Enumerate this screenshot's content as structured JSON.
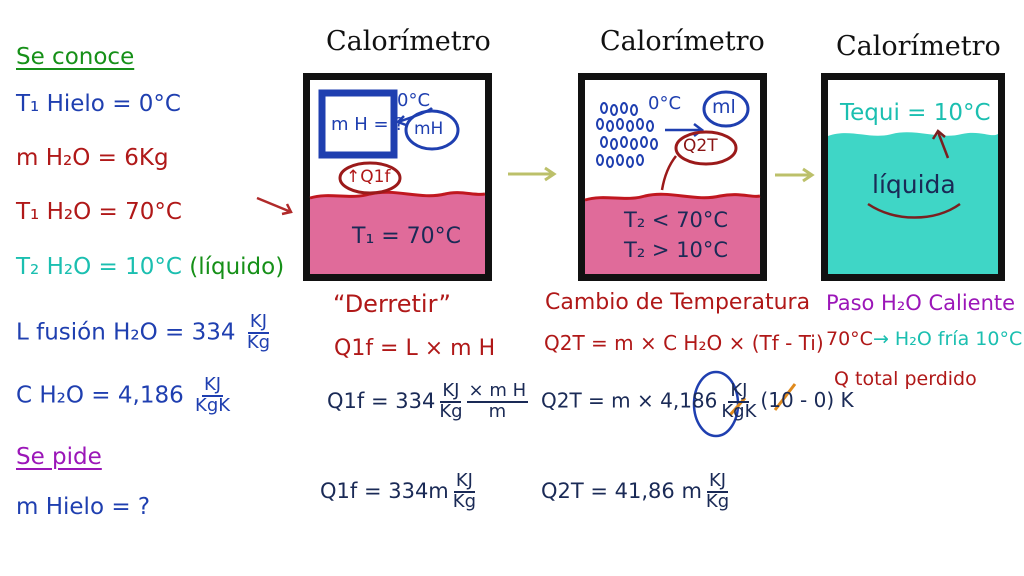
{
  "left": {
    "se_conoce": "Se conoce",
    "t1_hielo": "T₁ Hielo = 0°C",
    "m_h2o": "m H₂O = 6Kg",
    "t1_h2o": "T₁ H₂O = 70°C",
    "t2_h2o": "T₂ H₂O = 10°C",
    "liquido": "(líquido)",
    "lfusion_label": "L fusión H₂O = 334",
    "lfusion_num": "KJ",
    "lfusion_den": "Kg",
    "c_label": "C H₂O = 4,186",
    "c_num": "KJ",
    "c_den": "KgK",
    "se_pide": "Se pide",
    "m_hielo": "m Hielo = ?"
  },
  "panel1": {
    "title": "Calorímetro",
    "box_label": "m H = ?",
    "zero_c": "0°C",
    "mh_bubble": "mH",
    "q1f": "Q1f",
    "t1": "T₁ = 70°C",
    "caption": "“Derretir”",
    "eq1": "Q1f = L × m H",
    "eq2a": "Q1f = 334",
    "eq2_num": "KJ",
    "eq2_den": "Kg",
    "eq2b": "× m H",
    "eq2_m": "m",
    "eq3a": "Q1f = 334m",
    "eq3_num": "KJ",
    "eq3_den": "Kg"
  },
  "panel2": {
    "title": "Calorímetro",
    "zero_c": "0°C",
    "ml_bubble": "ml",
    "q2t": "Q2T",
    "t2a": "T₂ < 70°C",
    "t2b": "T₂ > 10°C",
    "caption": "Cambio de Temperatura",
    "eq1": "Q2T = m × C H₂O × (Tf - Ti)",
    "eq2a": "Q2T = m × 4,186",
    "eq2_num": "KJ",
    "eq2_den": "KgK",
    "eq2b": "(10 - 0) K",
    "eq3a": "Q2T = 41,86 m",
    "eq3_num": "KJ",
    "eq3_den": "Kg"
  },
  "panel3": {
    "title": "Calorímetro",
    "tequi": "Tequi = 10°C",
    "liquida": "líquida",
    "cap1": "Paso H₂O Caliente",
    "cap2a": "70°C",
    "cap2b": "→ H₂O fría 10°C",
    "cap3": "Q total perdido"
  },
  "colors": {
    "water_hot": "#e06b9a",
    "water_cool": "#3fd6c6",
    "wave": "#c0171f",
    "arrow": "#bcc06a",
    "box_border": "#111111"
  }
}
